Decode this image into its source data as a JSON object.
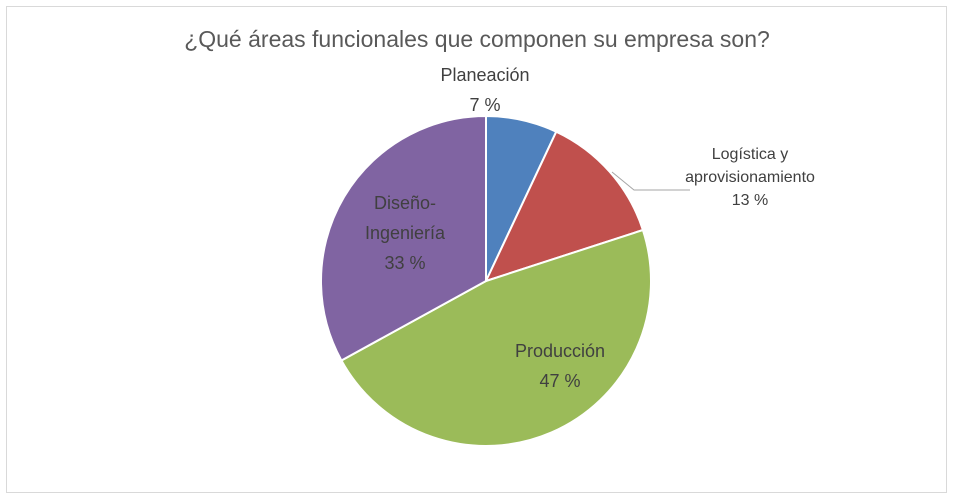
{
  "chart_data": {
    "type": "pie",
    "title": "¿Qué áreas funcionales que componen su empresa son?",
    "categories": [
      "Planeación",
      "Logística y aprovisionamiento",
      "Producción",
      "Diseño-Ingeniería"
    ],
    "values": [
      7,
      13,
      47,
      33
    ],
    "value_labels": [
      "7 %",
      "13 %",
      "47 %",
      "33 %"
    ],
    "colors": [
      "#4f81bd",
      "#c0504d",
      "#9bbb59",
      "#8064a2"
    ]
  }
}
